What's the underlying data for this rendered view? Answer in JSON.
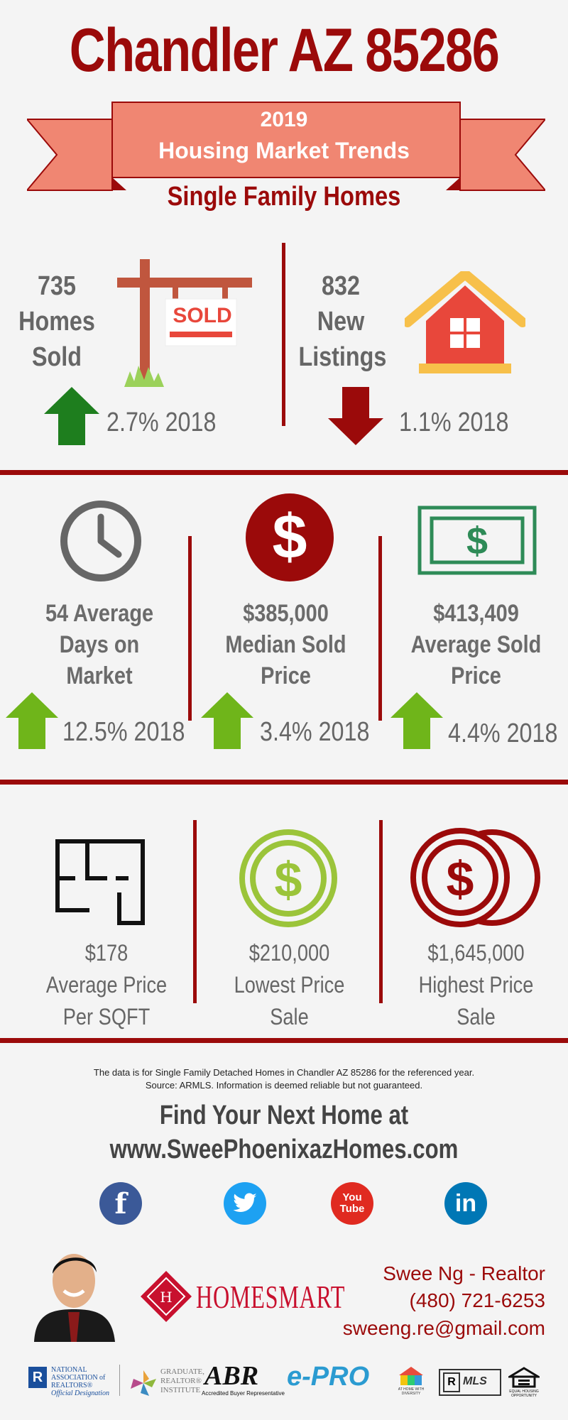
{
  "header": {
    "title": "Chandler AZ 85286",
    "banner_year": "2019",
    "banner_text": "Housing Market Trends",
    "subtitle": "Single Family Homes"
  },
  "row1": {
    "homes_sold": {
      "value": "735",
      "label1": "Homes",
      "label2": "Sold",
      "change": "2.7% 2018",
      "direction": "up"
    },
    "sold_sign_text": "SOLD",
    "new_listings": {
      "value": "832",
      "label1": "New",
      "label2": "Listings",
      "change": "1.1% 2018",
      "direction": "down"
    }
  },
  "row2": {
    "days": {
      "l1": "54 Average",
      "l2": "Days on",
      "l3": "Market",
      "change": "12.5% 2018"
    },
    "median": {
      "l1": "$385,000",
      "l2": "Median Sold",
      "l3": "Price",
      "change": "3.4% 2018"
    },
    "average": {
      "l1": "$413,409",
      "l2": "Average Sold",
      "l3": "Price",
      "change": "4.4% 2018"
    }
  },
  "row3": {
    "sqft": {
      "l1": "$178",
      "l2": "Average Price",
      "l3": "Per SQFT"
    },
    "lowest": {
      "l1": "$210,000",
      "l2": "Lowest Price Sale"
    },
    "highest": {
      "l1": "$1,645,000",
      "l2": "Highest Price Sale"
    }
  },
  "footer": {
    "disclaimer1": "The data is for Single Family Detached Homes in Chandler AZ 85286 for the referenced year.",
    "disclaimer2": "Source: ARMLS. Information is deemed reliable but not guaranteed.",
    "find1": "Find Your Next Home at",
    "find2": "www.SweePhoenixazHomes.com",
    "social": {
      "facebook": "f",
      "youtube1": "You",
      "youtube2": "Tube",
      "linkedin": "in"
    },
    "brand": "HOMESMART",
    "contact_name": "Swee Ng - Realtor",
    "contact_phone": "(480) 721-6253",
    "contact_email": "sweeng.re@gmail.com",
    "badges": {
      "nar1": "NATIONAL",
      "nar2": "ASSOCIATION of",
      "nar3": "REALTORS®",
      "nar4": "Official Designation",
      "gri1": "GRADUATE,",
      "gri2": "REALTOR®",
      "gri3": "INSTITUTE",
      "abr": "ABR",
      "abr_sub": "Accredited Buyer Representative",
      "epro": "e-PRO",
      "diversity": "AT HOME WITH DIVERSITY",
      "mls": "MLS",
      "eho": "EQUAL HOUSING OPPORTUNITY"
    }
  },
  "colors": {
    "dark_red": "#9b0a0a",
    "banner": "#f08672",
    "green": "#6fb51a",
    "dark_green": "#1e7e1e",
    "gray": "#666666"
  }
}
